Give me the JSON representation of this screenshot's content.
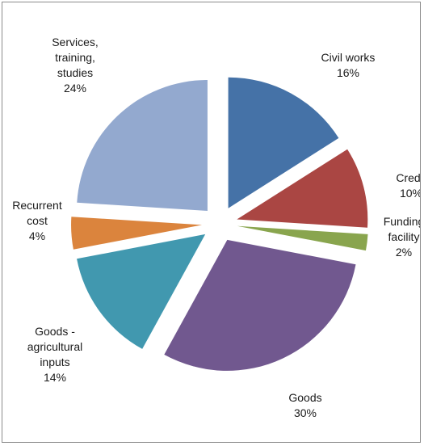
{
  "chart_data": {
    "type": "pie",
    "exploded": true,
    "slices": [
      {
        "label_lines": [
          "Civil works"
        ],
        "value": 16,
        "pct_label": "16%",
        "color": "#4572a7"
      },
      {
        "label_lines": [
          "Credit"
        ],
        "value": 10,
        "pct_label": "10%",
        "color": "#aa4643"
      },
      {
        "label_lines": [
          "Funding",
          "facility"
        ],
        "value": 2,
        "pct_label": "2%",
        "color": "#89a54e"
      },
      {
        "label_lines": [
          "Goods"
        ],
        "value": 30,
        "pct_label": "30%",
        "color": "#71588f"
      },
      {
        "label_lines": [
          "Goods -",
          "agricultural",
          "inputs"
        ],
        "value": 14,
        "pct_label": "14%",
        "color": "#4198af"
      },
      {
        "label_lines": [
          "Recurrent",
          "cost"
        ],
        "value": 4,
        "pct_label": "4%",
        "color": "#db843d"
      },
      {
        "label_lines": [
          "Services,",
          "training,",
          "studies"
        ],
        "value": 24,
        "pct_label": "24%",
        "color": "#93a9cf"
      }
    ]
  }
}
